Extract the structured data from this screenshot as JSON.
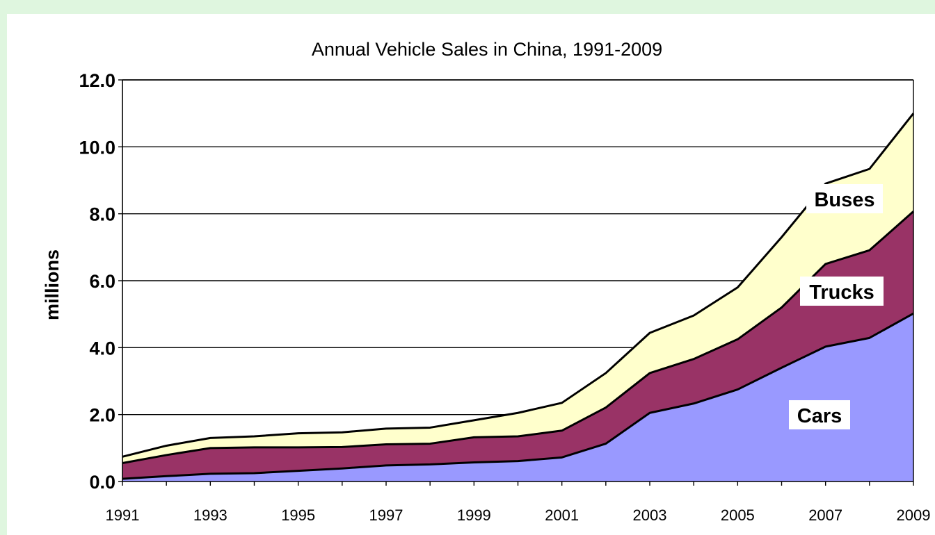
{
  "chart_data": {
    "type": "area",
    "stacked": true,
    "title": "Annual Vehicle Sales in China, 1991-2009",
    "ylabel": "millions",
    "xlabel": "",
    "ylim": [
      0,
      12
    ],
    "yticks": [
      "0.0",
      "2.0",
      "4.0",
      "6.0",
      "8.0",
      "10.0",
      "12.0"
    ],
    "xticks": [
      "1991",
      "1993",
      "1995",
      "1997",
      "1999",
      "2001",
      "2003",
      "2005",
      "2007",
      "2009"
    ],
    "grid": true,
    "x": [
      1991,
      1992,
      1993,
      1994,
      1995,
      1996,
      1997,
      1998,
      1999,
      2000,
      2001,
      2002,
      2003,
      2004,
      2005,
      2006,
      2007,
      2008,
      2009
    ],
    "series": [
      {
        "name": "Cars",
        "color": "#9999ff",
        "values": [
          0.08,
          0.16,
          0.23,
          0.25,
          0.32,
          0.39,
          0.48,
          0.51,
          0.57,
          0.61,
          0.72,
          1.13,
          2.05,
          2.33,
          2.75,
          3.4,
          4.03,
          4.29,
          5.02
        ]
      },
      {
        "name": "Trucks",
        "color": "#993366",
        "values": [
          0.47,
          0.63,
          0.77,
          0.77,
          0.7,
          0.64,
          0.63,
          0.62,
          0.75,
          0.74,
          0.8,
          1.08,
          1.19,
          1.33,
          1.5,
          1.8,
          2.47,
          2.62,
          3.05
        ]
      },
      {
        "name": "Buses",
        "color": "#ffffcc",
        "values": [
          0.19,
          0.28,
          0.3,
          0.33,
          0.42,
          0.44,
          0.47,
          0.48,
          0.51,
          0.7,
          0.83,
          1.03,
          1.2,
          1.3,
          1.55,
          2.1,
          2.4,
          2.43,
          2.93
        ]
      }
    ],
    "annotations": [
      "Buses",
      "Trucks",
      "Cars"
    ]
  }
}
